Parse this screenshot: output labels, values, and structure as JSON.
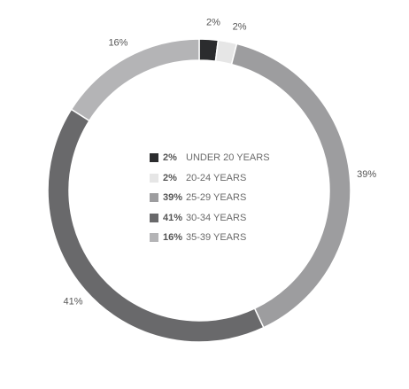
{
  "chart_data": {
    "type": "pie",
    "categories": [
      "UNDER 20 YEARS",
      "20-24 YEARS",
      "25-29 YEARS",
      "30-34 YEARS",
      "35-39 YEARS"
    ],
    "values": [
      2,
      2,
      39,
      41,
      16
    ],
    "labels": [
      "2%",
      "2%",
      "39%",
      "41%",
      "16%"
    ],
    "colors": [
      "#2b2c2e",
      "#e6e6e6",
      "#9d9d9f",
      "#69696b",
      "#b4b4b6"
    ],
    "donut": true,
    "legend_position": "center"
  }
}
